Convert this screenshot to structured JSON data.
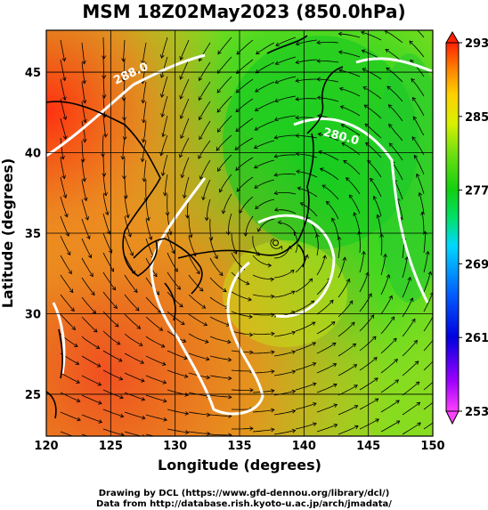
{
  "title": "MSM 18Z02May2023 (850.0hPa)",
  "map": {
    "xlabel": "Longitude (degrees)",
    "ylabel": "Latitude  (degrees)",
    "lon_range": [
      120,
      150
    ],
    "lat_range": [
      22.4,
      47.6
    ],
    "lon_ticks": [
      120,
      125,
      130,
      135,
      140,
      145,
      150
    ],
    "lon_tick_labels": [
      "120",
      "125",
      "130",
      "135",
      "140",
      "145",
      "150"
    ],
    "lat_ticks": [
      25,
      30,
      35,
      40,
      45
    ],
    "lat_tick_labels": [
      "25",
      "30",
      "35",
      "40",
      "45"
    ],
    "contour_labels": [
      "288.0",
      "280.0",
      "280.0"
    ],
    "low_center": {
      "lon": 137.8,
      "lat": 34.4
    }
  },
  "colorbar": {
    "labels": [
      "293",
      "285",
      "277",
      "269",
      "261",
      "253"
    ],
    "range": [
      253,
      293
    ]
  },
  "credits": {
    "line1": "Drawing by DCL (https://www.gfd-dennou.org/library/dcl/)",
    "line2": "Data from http://database.rish.kyoto-u.ac.jp/arch/jmadata/"
  },
  "colors": {
    "warm": "#f06a1e",
    "mid": "#30d820",
    "cool": "#00c800",
    "contour": "#ffffff",
    "streamline": "#000000"
  }
}
